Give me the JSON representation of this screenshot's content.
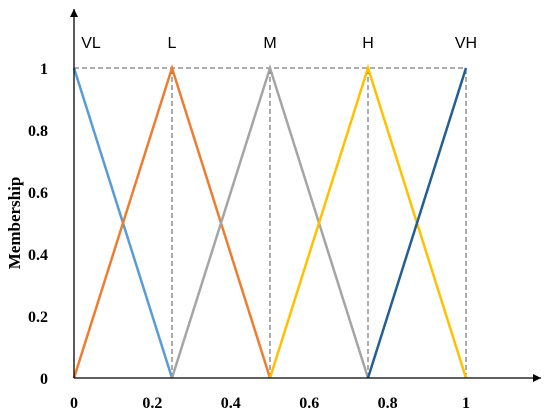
{
  "chart_data": {
    "type": "line",
    "title": "",
    "xlabel": "",
    "ylabel": "Membership",
    "xlim": [
      0,
      1
    ],
    "ylim": [
      0,
      1
    ],
    "x_ticks": [
      "0",
      "0.2",
      "0.4",
      "0.6",
      "0.8",
      "1"
    ],
    "x_tick_values": [
      0,
      0.2,
      0.4,
      0.6,
      0.8,
      1
    ],
    "y_ticks": [
      "0",
      "0.2",
      "0.4",
      "0.6",
      "0.8",
      "1"
    ],
    "y_tick_values": [
      0,
      0.2,
      0.4,
      0.6,
      0.8,
      1
    ],
    "grid": false,
    "series": [
      {
        "name": "VL",
        "color": "#5b9bd5",
        "x": [
          0,
          0.25
        ],
        "y": [
          1,
          0
        ]
      },
      {
        "name": "L",
        "color": "#ed7d31",
        "x": [
          0,
          0.25,
          0.5
        ],
        "y": [
          0,
          1,
          0
        ]
      },
      {
        "name": "M",
        "color": "#a5a5a5",
        "x": [
          0.25,
          0.5,
          0.75
        ],
        "y": [
          0,
          1,
          0
        ]
      },
      {
        "name": "H",
        "color": "#ffc000",
        "x": [
          0.5,
          0.75,
          1
        ],
        "y": [
          0,
          1,
          0
        ]
      },
      {
        "name": "VH",
        "color": "#255e91",
        "x": [
          0.75,
          1
        ],
        "y": [
          0,
          1
        ]
      }
    ],
    "reference_lines": {
      "color": "#595959",
      "horizontal_y": 1,
      "vertical_x": [
        0.25,
        0.5,
        0.75,
        1
      ]
    }
  }
}
